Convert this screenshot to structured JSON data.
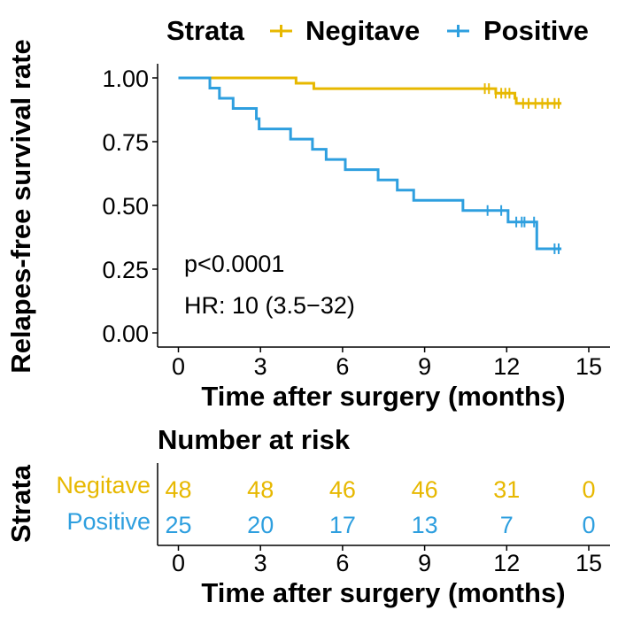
{
  "chart_data": [
    {
      "type": "line",
      "subtype": "kaplan-meier",
      "legend": {
        "title": "Strata",
        "position": "top",
        "entries": [
          "Negitave",
          "Positive"
        ]
      },
      "xlabel": "Time after surgery (months)",
      "ylabel": "Relapes-free survival rate",
      "xlim": [
        0,
        15
      ],
      "ylim": [
        0,
        1
      ],
      "xticks": [
        0,
        3,
        6,
        9,
        12,
        15
      ],
      "xtick_labels": [
        "0",
        "3",
        "6",
        "9",
        "12",
        "15"
      ],
      "yticks": [
        0,
        0.25,
        0.5,
        0.75,
        1.0
      ],
      "ytick_labels": [
        "0.00",
        "0.25",
        "0.50",
        "0.75",
        "1.00"
      ],
      "grid": false,
      "annotations": [
        "p<0.0001",
        "HR: 10 (3.5−32)"
      ],
      "series": [
        {
          "name": "Negitave",
          "color": "#E7B800",
          "steps": [
            [
              0,
              1.0
            ],
            [
              4.3,
              0.979
            ],
            [
              4.95,
              0.958
            ]
          ],
          "end_x": 14.0,
          "end_y": 0.9,
          "later_steps": [
            [
              11.4,
              0.958
            ],
            [
              11.6,
              0.94
            ],
            [
              12.3,
              0.92
            ],
            [
              12.35,
              0.9
            ]
          ],
          "censors": [
            [
              11.2,
              0.958
            ],
            [
              11.35,
              0.958
            ],
            [
              11.6,
              0.94
            ],
            [
              11.8,
              0.94
            ],
            [
              11.95,
              0.94
            ],
            [
              12.1,
              0.94
            ],
            [
              12.6,
              0.9
            ],
            [
              12.8,
              0.9
            ],
            [
              13.05,
              0.9
            ],
            [
              13.3,
              0.9
            ],
            [
              13.5,
              0.9
            ],
            [
              13.75,
              0.9
            ],
            [
              13.9,
              0.9
            ]
          ]
        },
        {
          "name": "Positive",
          "color": "#2E9FDF",
          "steps": [
            [
              0,
              1.0
            ],
            [
              1.15,
              0.96
            ],
            [
              1.5,
              0.92
            ],
            [
              2.0,
              0.88
            ],
            [
              2.85,
              0.84
            ],
            [
              2.95,
              0.8
            ],
            [
              4.1,
              0.76
            ],
            [
              4.9,
              0.72
            ],
            [
              5.4,
              0.68
            ],
            [
              6.1,
              0.64
            ],
            [
              7.3,
              0.6
            ],
            [
              8.0,
              0.56
            ],
            [
              8.6,
              0.52
            ],
            [
              10.4,
              0.48
            ],
            [
              11.9,
              0.48
            ],
            [
              12.05,
              0.435
            ],
            [
              13.1,
              0.33
            ]
          ],
          "end_x": 14.0,
          "end_y": 0.33,
          "censors": [
            [
              11.3,
              0.48
            ],
            [
              11.8,
              0.48
            ],
            [
              12.35,
              0.435
            ],
            [
              12.55,
              0.435
            ],
            [
              12.65,
              0.435
            ],
            [
              13.0,
              0.435
            ],
            [
              13.75,
              0.33
            ],
            [
              13.9,
              0.33
            ]
          ]
        }
      ]
    },
    {
      "type": "table",
      "title": "Number at risk",
      "ylabel": "Strata",
      "xlabel": "Time after surgery (months)",
      "xlim": [
        0,
        15
      ],
      "xticks": [
        0,
        3,
        6,
        9,
        12,
        15
      ],
      "xtick_labels": [
        "0",
        "3",
        "6",
        "9",
        "12",
        "15"
      ],
      "rows": [
        {
          "name": "Negitave",
          "color": "#E7B800",
          "values": [
            "48",
            "48",
            "46",
            "46",
            "31",
            "0"
          ]
        },
        {
          "name": "Positive",
          "color": "#2E9FDF",
          "values": [
            "25",
            "20",
            "17",
            "13",
            "7",
            "0"
          ]
        }
      ]
    }
  ]
}
